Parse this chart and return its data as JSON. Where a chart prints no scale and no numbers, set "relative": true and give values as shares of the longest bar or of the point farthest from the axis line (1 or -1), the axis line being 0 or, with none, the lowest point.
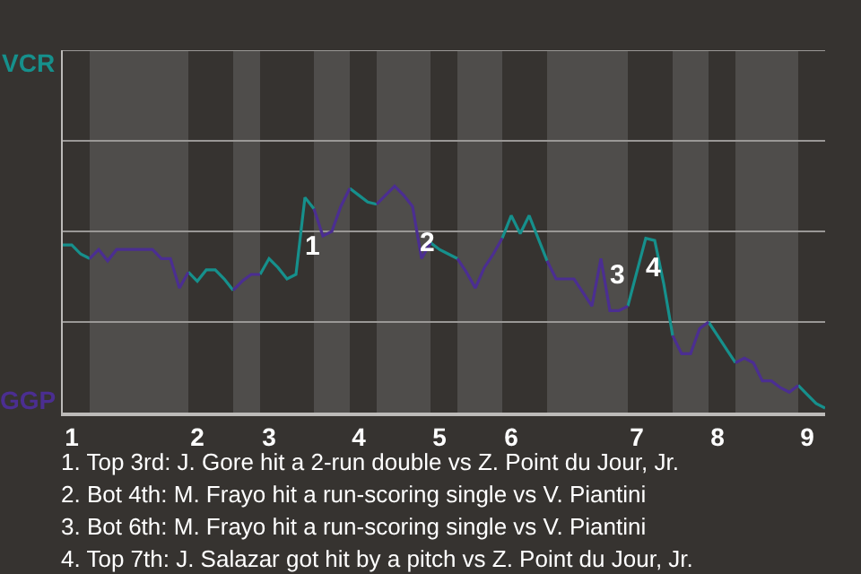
{
  "chart_data": {
    "type": "line",
    "categories": [
      null,
      "1",
      null,
      null,
      null,
      null,
      null,
      null,
      null,
      null,
      null,
      null,
      null,
      null,
      null,
      "2",
      null,
      null,
      null,
      null,
      null,
      null,
      null,
      "3",
      null,
      null,
      null,
      null,
      null,
      null,
      null,
      null,
      null,
      "4",
      null,
      null,
      null,
      null,
      null,
      null,
      null,
      null,
      "5",
      null,
      null,
      null,
      null,
      null,
      null,
      null,
      "6",
      null,
      null,
      null,
      null,
      null,
      null,
      null,
      null,
      null,
      null,
      null,
      null,
      null,
      "7",
      null,
      null,
      null,
      null,
      null,
      null,
      null,
      null,
      "8",
      null,
      null,
      null,
      null,
      null,
      null,
      null,
      null,
      null,
      "9",
      null,
      null
    ],
    "relative": true,
    "series": [
      {
        "name": "VCR",
        "color": "#16908c",
        "values": [
          0.74,
          0.74,
          0.7,
          0.68,
          null,
          null,
          null,
          null,
          null,
          null,
          null,
          null,
          null,
          null,
          0.62,
          0.58,
          0.63,
          0.63,
          0.59,
          0.54,
          null,
          null,
          0.61,
          0.68,
          0.64,
          0.59,
          0.61,
          0.95,
          0.9,
          null,
          null,
          null,
          0.99,
          0.96,
          0.93,
          0.92,
          null,
          null,
          null,
          null,
          null,
          0.75,
          0.72,
          0.7,
          0.68,
          null,
          null,
          null,
          null,
          0.77,
          0.87,
          0.79,
          0.87,
          0.77,
          0.67,
          null,
          null,
          null,
          null,
          null,
          null,
          null,
          null,
          0.47,
          0.62,
          0.77,
          0.76,
          0.57,
          0.34,
          null,
          null,
          null,
          0.4,
          0.34,
          0.28,
          0.22,
          null,
          null,
          null,
          null,
          null,
          null,
          0.12,
          0.08,
          0.04,
          0.02
        ]
      },
      {
        "name": "GGP",
        "color": "#4b2e91",
        "values": [
          null,
          null,
          null,
          0.68,
          0.72,
          0.67,
          0.72,
          0.72,
          0.72,
          0.72,
          0.72,
          0.68,
          0.68,
          0.55,
          0.62,
          null,
          null,
          null,
          null,
          0.54,
          0.58,
          0.61,
          0.61,
          null,
          null,
          null,
          null,
          null,
          0.9,
          0.78,
          0.8,
          0.91,
          0.99,
          null,
          null,
          0.92,
          0.96,
          1,
          0.96,
          0.91,
          0.68,
          0.75,
          null,
          null,
          0.68,
          0.62,
          0.55,
          0.64,
          0.7,
          0.77,
          null,
          null,
          null,
          null,
          0.67,
          0.59,
          0.59,
          0.59,
          0.53,
          0.47,
          0.68,
          0.45,
          0.45,
          0.47,
          null,
          null,
          null,
          null,
          0.34,
          0.26,
          0.26,
          0.37,
          0.4,
          null,
          null,
          0.22,
          0.24,
          0.22,
          0.14,
          0.14,
          0.11,
          0.09,
          0.12,
          null,
          null,
          null
        ]
      }
    ],
    "ref_lines": [
      {
        "axis": "y",
        "value": 0.4,
        "color": "#9a9896"
      },
      {
        "axis": "y",
        "value": 0.8,
        "color": "#9a9896"
      },
      {
        "axis": "y",
        "value": 1.2,
        "color": "#9a9896"
      },
      {
        "axis": "y",
        "value": 1.6,
        "color": "#9a9896"
      }
    ],
    "legend": "left",
    "marker": "none",
    "line_style": "solid",
    "annotations": [
      "1",
      "2",
      "3",
      "4",
      "1. Top 3rd: J. Gore hit a 2-run double vs Z. Point du Jour, Jr.",
      "2. Bot 4th: M. Frayo hit a run-scoring single vs V. Piantini",
      "3. Bot 6th: M. Frayo hit a run-scoring single vs V. Piantini",
      "4. Top 7th: J. Salazar got hit by a pitch vs Z. Point du Jour, Jr."
    ]
  }
}
